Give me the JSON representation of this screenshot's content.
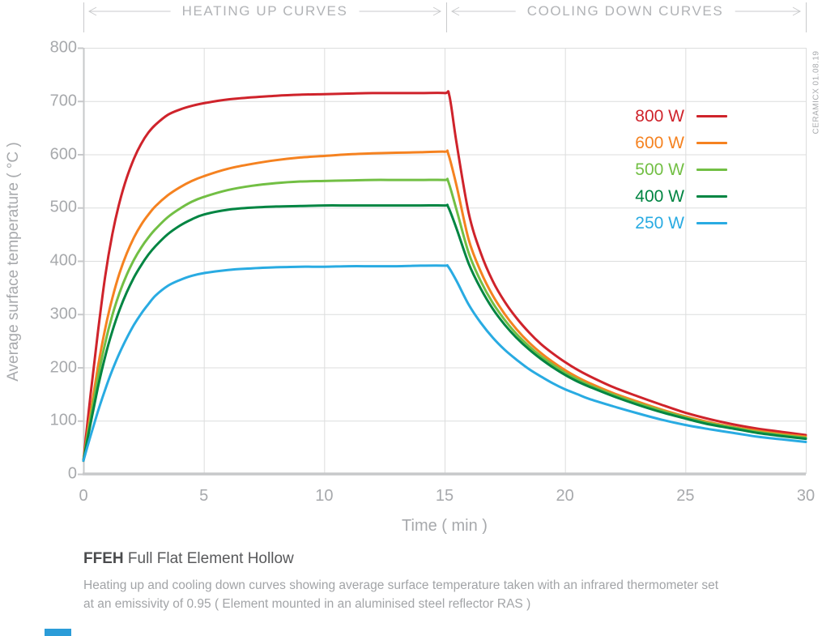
{
  "header": {
    "left_section_label": "HEATING UP CURVES",
    "right_section_label": "COOLING DOWN CURVES"
  },
  "watermark": "CERAMICX 01.08.19",
  "footer": {
    "product_code": "FFEH",
    "product_name": "Full Flat Element Hollow",
    "description_line1": "Heating up and cooling down curves showing average surface temperature taken with an infrared thermometer set",
    "description_line2": "at an emissivity of 0.95  ( Element mounted in an aluminised steel reflector RAS )"
  },
  "colors": {
    "grid": "#dcdddd",
    "axis": "#c7c8ca",
    "tick_text": "#a7a9ac",
    "header_text": "#b1b3b6",
    "header_rule": "#c9cacc"
  },
  "chart_data": {
    "type": "line",
    "title": "",
    "xlabel": "Time ( min )",
    "ylabel": "Average surface temperature ( °C )",
    "xlim": [
      0,
      30
    ],
    "ylim": [
      0,
      800
    ],
    "xticks": [
      0,
      5,
      10,
      15,
      20,
      25,
      30
    ],
    "yticks": [
      0,
      100,
      200,
      300,
      400,
      500,
      600,
      700,
      800
    ],
    "grid": true,
    "legend_position": "upper right",
    "heating_phase_range_min": [
      0,
      15
    ],
    "cooling_phase_range_min": [
      15,
      30
    ],
    "series": [
      {
        "name": "800 W",
        "color": "#cf232b",
        "points": [
          [
            0,
            25
          ],
          [
            0.3,
            150
          ],
          [
            0.6,
            265
          ],
          [
            0.9,
            370
          ],
          [
            1.2,
            450
          ],
          [
            1.5,
            510
          ],
          [
            1.8,
            556
          ],
          [
            2.1,
            592
          ],
          [
            2.4,
            620
          ],
          [
            2.7,
            641
          ],
          [
            3,
            656
          ],
          [
            3.5,
            674
          ],
          [
            4,
            684
          ],
          [
            4.5,
            691
          ],
          [
            5,
            696
          ],
          [
            6,
            703
          ],
          [
            7,
            707
          ],
          [
            8,
            710
          ],
          [
            9,
            712
          ],
          [
            10,
            713
          ],
          [
            11,
            714
          ],
          [
            12,
            715
          ],
          [
            13,
            715
          ],
          [
            14,
            715
          ],
          [
            15,
            715
          ],
          [
            15.2,
            710
          ],
          [
            15.5,
            620
          ],
          [
            16,
            490
          ],
          [
            16.5,
            415
          ],
          [
            17,
            362
          ],
          [
            17.5,
            323
          ],
          [
            18,
            292
          ],
          [
            18.5,
            266
          ],
          [
            19,
            244
          ],
          [
            19.5,
            226
          ],
          [
            20,
            210
          ],
          [
            20.5,
            196
          ],
          [
            21,
            184
          ],
          [
            22,
            163
          ],
          [
            23,
            146
          ],
          [
            24,
            130
          ],
          [
            25,
            115
          ],
          [
            26,
            103
          ],
          [
            27,
            93
          ],
          [
            28,
            85
          ],
          [
            29,
            79
          ],
          [
            30,
            73
          ]
        ]
      },
      {
        "name": "600 W",
        "color": "#f58220",
        "points": [
          [
            0,
            25
          ],
          [
            0.3,
            115
          ],
          [
            0.6,
            200
          ],
          [
            0.9,
            272
          ],
          [
            1.2,
            330
          ],
          [
            1.5,
            377
          ],
          [
            1.8,
            414
          ],
          [
            2.1,
            444
          ],
          [
            2.4,
            468
          ],
          [
            2.7,
            487
          ],
          [
            3,
            503
          ],
          [
            3.5,
            523
          ],
          [
            4,
            538
          ],
          [
            4.5,
            550
          ],
          [
            5,
            559
          ],
          [
            6,
            573
          ],
          [
            7,
            582
          ],
          [
            8,
            589
          ],
          [
            9,
            594
          ],
          [
            10,
            597
          ],
          [
            11,
            600
          ],
          [
            12,
            602
          ],
          [
            13,
            603
          ],
          [
            14,
            604
          ],
          [
            15,
            605
          ],
          [
            15.15,
            601
          ],
          [
            15.5,
            540
          ],
          [
            16,
            440
          ],
          [
            16.5,
            380
          ],
          [
            17,
            335
          ],
          [
            17.5,
            300
          ],
          [
            18,
            271
          ],
          [
            18.5,
            247
          ],
          [
            19,
            227
          ],
          [
            19.5,
            210
          ],
          [
            20,
            195
          ],
          [
            20.5,
            182
          ],
          [
            21,
            171
          ],
          [
            22,
            152
          ],
          [
            23,
            136
          ],
          [
            24,
            121
          ],
          [
            25,
            108
          ],
          [
            26,
            97
          ],
          [
            27,
            88
          ],
          [
            28,
            81
          ],
          [
            29,
            75
          ],
          [
            30,
            70
          ]
        ]
      },
      {
        "name": "500 W",
        "color": "#72bf44",
        "points": [
          [
            0,
            25
          ],
          [
            0.3,
            105
          ],
          [
            0.6,
            180
          ],
          [
            0.9,
            245
          ],
          [
            1.2,
            298
          ],
          [
            1.5,
            340
          ],
          [
            1.8,
            374
          ],
          [
            2.1,
            402
          ],
          [
            2.4,
            425
          ],
          [
            2.7,
            444
          ],
          [
            3,
            460
          ],
          [
            3.5,
            482
          ],
          [
            4,
            498
          ],
          [
            4.5,
            511
          ],
          [
            5,
            520
          ],
          [
            6,
            533
          ],
          [
            7,
            541
          ],
          [
            8,
            546
          ],
          [
            9,
            549
          ],
          [
            10,
            550
          ],
          [
            11,
            551
          ],
          [
            12,
            552
          ],
          [
            13,
            552
          ],
          [
            14,
            552
          ],
          [
            15,
            552
          ],
          [
            15.15,
            549
          ],
          [
            15.5,
            495
          ],
          [
            16,
            415
          ],
          [
            16.5,
            362
          ],
          [
            17,
            321
          ],
          [
            17.5,
            289
          ],
          [
            18,
            262
          ],
          [
            18.5,
            240
          ],
          [
            19,
            221
          ],
          [
            19.5,
            205
          ],
          [
            20,
            190
          ],
          [
            20.5,
            178
          ],
          [
            21,
            167
          ],
          [
            22,
            149
          ],
          [
            23,
            133
          ],
          [
            24,
            119
          ],
          [
            25,
            106
          ],
          [
            26,
            95
          ],
          [
            27,
            87
          ],
          [
            28,
            79
          ],
          [
            29,
            73
          ],
          [
            30,
            68
          ]
        ]
      },
      {
        "name": "400 W",
        "color": "#008542",
        "points": [
          [
            0,
            25
          ],
          [
            0.3,
            95
          ],
          [
            0.6,
            162
          ],
          [
            0.9,
            220
          ],
          [
            1.2,
            268
          ],
          [
            1.5,
            308
          ],
          [
            1.8,
            341
          ],
          [
            2.1,
            369
          ],
          [
            2.4,
            392
          ],
          [
            2.7,
            412
          ],
          [
            3,
            428
          ],
          [
            3.5,
            450
          ],
          [
            4,
            466
          ],
          [
            4.5,
            478
          ],
          [
            5,
            487
          ],
          [
            6,
            496
          ],
          [
            7,
            500
          ],
          [
            8,
            502
          ],
          [
            9,
            503
          ],
          [
            10,
            504
          ],
          [
            11,
            504
          ],
          [
            12,
            504
          ],
          [
            13,
            504
          ],
          [
            14,
            504
          ],
          [
            15,
            504
          ],
          [
            15.15,
            501
          ],
          [
            15.5,
            460
          ],
          [
            16,
            395
          ],
          [
            16.5,
            348
          ],
          [
            17,
            310
          ],
          [
            17.5,
            280
          ],
          [
            18,
            255
          ],
          [
            18.5,
            234
          ],
          [
            19,
            216
          ],
          [
            19.5,
            200
          ],
          [
            20,
            186
          ],
          [
            20.5,
            174
          ],
          [
            21,
            164
          ],
          [
            22,
            146
          ],
          [
            23,
            130
          ],
          [
            24,
            116
          ],
          [
            25,
            104
          ],
          [
            26,
            93
          ],
          [
            27,
            85
          ],
          [
            28,
            77
          ],
          [
            29,
            71
          ],
          [
            30,
            66
          ]
        ]
      },
      {
        "name": "250 W",
        "color": "#29abe2",
        "points": [
          [
            0,
            25
          ],
          [
            0.3,
            72
          ],
          [
            0.6,
            117
          ],
          [
            0.9,
            158
          ],
          [
            1.2,
            195
          ],
          [
            1.5,
            227
          ],
          [
            1.8,
            255
          ],
          [
            2.1,
            280
          ],
          [
            2.4,
            301
          ],
          [
            2.7,
            319
          ],
          [
            3,
            335
          ],
          [
            3.5,
            353
          ],
          [
            4,
            364
          ],
          [
            4.5,
            372
          ],
          [
            5,
            377
          ],
          [
            6,
            383
          ],
          [
            7,
            386
          ],
          [
            8,
            388
          ],
          [
            9,
            389
          ],
          [
            10,
            389
          ],
          [
            11,
            390
          ],
          [
            12,
            390
          ],
          [
            13,
            390
          ],
          [
            14,
            391
          ],
          [
            15,
            391
          ],
          [
            15.15,
            389
          ],
          [
            15.5,
            362
          ],
          [
            16,
            318
          ],
          [
            16.5,
            284
          ],
          [
            17,
            256
          ],
          [
            17.5,
            233
          ],
          [
            18,
            214
          ],
          [
            18.5,
            197
          ],
          [
            19,
            183
          ],
          [
            19.5,
            170
          ],
          [
            20,
            159
          ],
          [
            20.5,
            150
          ],
          [
            21,
            141
          ],
          [
            22,
            127
          ],
          [
            23,
            114
          ],
          [
            24,
            102
          ],
          [
            25,
            92
          ],
          [
            26,
            84
          ],
          [
            27,
            77
          ],
          [
            28,
            70
          ],
          [
            29,
            65
          ],
          [
            30,
            60
          ]
        ]
      }
    ]
  }
}
